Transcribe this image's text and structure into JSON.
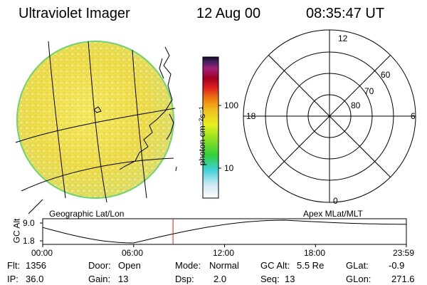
{
  "header": {
    "title": "Ultraviolet Imager",
    "date": "12 Aug 00",
    "time": "08:35:47 UT"
  },
  "colorbar": {
    "unit_label": "photon cm⁻²s⁻¹",
    "ticks": [
      "100",
      "10"
    ]
  },
  "polar": {
    "mlt_labels": {
      "top": "12",
      "left": "18",
      "right": "6",
      "bottom": "0"
    },
    "lat_labels": [
      "60",
      "70",
      "80"
    ]
  },
  "panel_labels": {
    "left": "Geographic Lat/Lon",
    "right": "Apex MLat/MLT"
  },
  "altitude_plot": {
    "ylabel": "GC Alt",
    "yticks": [
      "9.0",
      "1.8"
    ],
    "xticks": [
      "00:00",
      "06:00",
      "12:00",
      "18:00",
      "23:59"
    ],
    "current_time_hours": 8.6,
    "curve_color": "#000000",
    "marker_color": "#cc2222"
  },
  "info": {
    "flt_label": "Flt:",
    "flt_value": "1356",
    "ip_label": "IP:",
    "ip_value": "36.0",
    "door_label": "Door:",
    "door_value": "Open",
    "gain_label": "Gain:",
    "gain_value": "13",
    "mode_label": "Mode:",
    "mode_value": "Normal",
    "dsp_label": "Dsp:",
    "dsp_value": "2.0",
    "gcalt_label": "GC Alt:",
    "gcalt_value": "5.5 Re",
    "seq_label": "Seq:",
    "seq_value": "13",
    "glat_label": "GLat:",
    "glat_value": "-0.9",
    "glon_label": "GLon:",
    "glon_value": "271.6"
  }
}
